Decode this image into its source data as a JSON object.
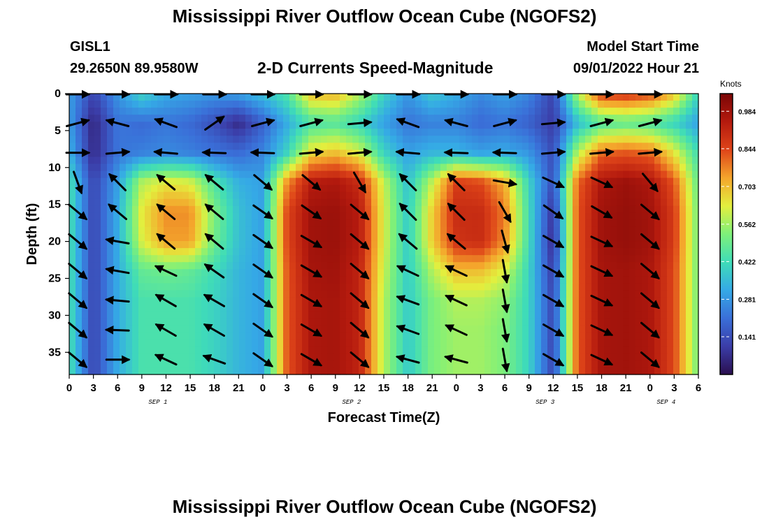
{
  "page": {
    "title": "Mississippi River Outflow Ocean Cube (NGOFS2)",
    "station": "GISL1",
    "location": "29.2650N  89.9580W",
    "subtitle": "2-D Currents Speed-Magnitude",
    "start_label": "Model Start Time",
    "start_value": "09/01/2022 Hour 21",
    "footer_title": "Mississippi River Outflow Ocean Cube (NGOFS2)"
  },
  "colors": {
    "ramp": [
      "#2a0f4f",
      "#3b3da8",
      "#3a6fd8",
      "#35a9e6",
      "#3fdcb8",
      "#7ef07a",
      "#e3ef3e",
      "#f4a52c",
      "#de4419",
      "#b41a0e",
      "#7a0606"
    ]
  },
  "chart_data": {
    "type": "heatmap",
    "xlabel": "Forecast Time(Z)",
    "ylabel": "Depth (ft)",
    "x_range_hours": [
      0,
      78
    ],
    "ylim": [
      0,
      38
    ],
    "y_ticks": [
      0,
      5,
      10,
      15,
      20,
      25,
      30,
      35
    ],
    "x_tick_labels": [
      "0",
      "3",
      "6",
      "9",
      "12",
      "15",
      "18",
      "21",
      "0",
      "3",
      "6",
      "9",
      "12",
      "15",
      "18",
      "21",
      "0",
      "3",
      "6",
      "9",
      "12",
      "15",
      "18",
      "21",
      "0",
      "3",
      "6"
    ],
    "date_labels": [
      {
        "text": "SEP 1",
        "hour": 11
      },
      {
        "text": "SEP 2",
        "hour": 35
      },
      {
        "text": "SEP 3",
        "hour": 59
      },
      {
        "text": "SEP 4",
        "hour": 74
      }
    ],
    "colorbar": {
      "unit": "Knots",
      "range": [
        0,
        1.05
      ],
      "ticks": [
        0.141,
        0.281,
        0.422,
        0.562,
        0.703,
        0.844,
        0.984
      ],
      "tick_labels": [
        "0.141",
        "0.281",
        "0.422",
        "0.562",
        "0.703",
        "0.844",
        "0.984"
      ]
    },
    "hours": [
      0,
      3,
      6,
      9,
      12,
      15,
      18,
      21,
      24,
      27,
      30,
      33,
      36,
      39,
      42,
      45,
      48,
      51,
      54,
      57,
      60,
      63,
      66,
      69,
      72,
      75,
      78
    ],
    "depths": [
      0,
      4,
      8,
      12,
      16,
      20,
      24,
      28,
      32,
      36,
      38
    ],
    "speed_knots": [
      [
        0.3,
        0.12,
        0.28,
        0.4,
        0.32,
        0.3,
        0.28,
        0.3,
        0.36,
        0.45,
        0.7,
        0.72,
        0.58,
        0.4,
        0.28,
        0.38,
        0.32,
        0.26,
        0.3,
        0.25,
        0.12,
        0.58,
        0.86,
        0.88,
        0.84,
        0.7,
        0.4
      ],
      [
        0.3,
        0.05,
        0.22,
        0.2,
        0.22,
        0.2,
        0.14,
        0.06,
        0.18,
        0.32,
        0.44,
        0.46,
        0.4,
        0.3,
        0.22,
        0.24,
        0.24,
        0.2,
        0.22,
        0.18,
        0.1,
        0.35,
        0.46,
        0.48,
        0.46,
        0.4,
        0.3
      ],
      [
        0.34,
        0.06,
        0.22,
        0.24,
        0.26,
        0.24,
        0.22,
        0.2,
        0.25,
        0.4,
        0.66,
        0.7,
        0.62,
        0.4,
        0.3,
        0.34,
        0.34,
        0.3,
        0.32,
        0.28,
        0.14,
        0.58,
        0.8,
        0.82,
        0.8,
        0.64,
        0.42
      ],
      [
        0.44,
        0.12,
        0.3,
        0.58,
        0.64,
        0.62,
        0.45,
        0.33,
        0.3,
        0.76,
        0.94,
        0.96,
        0.9,
        0.6,
        0.36,
        0.6,
        0.86,
        0.84,
        0.72,
        0.4,
        0.14,
        0.8,
        0.96,
        0.99,
        0.96,
        0.82,
        0.48
      ],
      [
        0.44,
        0.12,
        0.32,
        0.64,
        0.76,
        0.76,
        0.52,
        0.36,
        0.3,
        0.84,
        0.98,
        0.99,
        0.94,
        0.62,
        0.38,
        0.68,
        0.9,
        0.9,
        0.78,
        0.42,
        0.08,
        0.82,
        0.98,
        1.0,
        0.98,
        0.86,
        0.5
      ],
      [
        0.44,
        0.12,
        0.32,
        0.62,
        0.74,
        0.74,
        0.5,
        0.36,
        0.3,
        0.84,
        0.98,
        0.99,
        0.94,
        0.62,
        0.38,
        0.68,
        0.88,
        0.9,
        0.76,
        0.42,
        0.06,
        0.82,
        0.98,
        1.0,
        0.98,
        0.86,
        0.5
      ],
      [
        0.44,
        0.12,
        0.32,
        0.48,
        0.5,
        0.48,
        0.42,
        0.34,
        0.3,
        0.82,
        0.97,
        0.98,
        0.92,
        0.6,
        0.38,
        0.58,
        0.7,
        0.7,
        0.62,
        0.4,
        0.1,
        0.82,
        0.97,
        0.98,
        0.96,
        0.84,
        0.5
      ],
      [
        0.44,
        0.12,
        0.32,
        0.44,
        0.44,
        0.44,
        0.4,
        0.34,
        0.3,
        0.82,
        0.96,
        0.97,
        0.92,
        0.58,
        0.38,
        0.52,
        0.58,
        0.58,
        0.54,
        0.4,
        0.12,
        0.82,
        0.97,
        0.98,
        0.96,
        0.84,
        0.5
      ],
      [
        0.44,
        0.12,
        0.32,
        0.44,
        0.44,
        0.44,
        0.4,
        0.34,
        0.3,
        0.82,
        0.96,
        0.97,
        0.92,
        0.58,
        0.38,
        0.52,
        0.56,
        0.56,
        0.52,
        0.4,
        0.12,
        0.82,
        0.97,
        0.98,
        0.96,
        0.84,
        0.5
      ],
      [
        0.44,
        0.12,
        0.32,
        0.44,
        0.44,
        0.44,
        0.4,
        0.34,
        0.3,
        0.82,
        0.96,
        0.97,
        0.92,
        0.58,
        0.38,
        0.52,
        0.56,
        0.56,
        0.52,
        0.4,
        0.12,
        0.82,
        0.97,
        0.98,
        0.96,
        0.84,
        0.5
      ],
      [
        0.44,
        0.12,
        0.32,
        0.44,
        0.44,
        0.44,
        0.4,
        0.34,
        0.3,
        0.82,
        0.96,
        0.97,
        0.92,
        0.58,
        0.38,
        0.52,
        0.56,
        0.56,
        0.52,
        0.4,
        0.12,
        0.82,
        0.97,
        0.98,
        0.96,
        0.84,
        0.5
      ]
    ],
    "vector_hours": [
      0,
      6,
      12,
      18,
      24,
      30,
      36,
      42,
      48,
      54,
      60,
      66,
      72
    ],
    "vector_depths": [
      0,
      4,
      8,
      12,
      16,
      20,
      24,
      28,
      32,
      36
    ],
    "vector_directions_deg": [
      [
        0,
        0,
        0,
        0,
        0,
        0,
        0,
        0,
        0,
        0,
        0,
        0,
        0
      ],
      [
        15,
        165,
        160,
        35,
        15,
        15,
        5,
        160,
        165,
        15,
        5,
        15,
        15
      ],
      [
        0,
        5,
        175,
        178,
        178,
        5,
        5,
        175,
        178,
        178,
        5,
        5,
        5
      ],
      [
        -70,
        135,
        140,
        140,
        -40,
        -40,
        -60,
        135,
        135,
        -10,
        -25,
        -25,
        -50
      ],
      [
        -40,
        140,
        140,
        140,
        -35,
        -35,
        -40,
        135,
        135,
        -60,
        -35,
        -30,
        -40
      ],
      [
        -40,
        170,
        140,
        140,
        -35,
        -30,
        -40,
        140,
        140,
        -75,
        -30,
        -25,
        -40
      ],
      [
        -40,
        170,
        155,
        145,
        -35,
        -30,
        -40,
        155,
        155,
        -80,
        -30,
        -25,
        -40
      ],
      [
        -40,
        175,
        150,
        150,
        -35,
        -30,
        -40,
        160,
        155,
        -80,
        -30,
        -25,
        -40
      ],
      [
        -40,
        178,
        150,
        150,
        -35,
        -30,
        -40,
        160,
        155,
        -80,
        -30,
        -25,
        -40
      ],
      [
        -40,
        0,
        155,
        160,
        -35,
        -30,
        -40,
        165,
        165,
        -80,
        -30,
        -25,
        -40
      ]
    ]
  }
}
